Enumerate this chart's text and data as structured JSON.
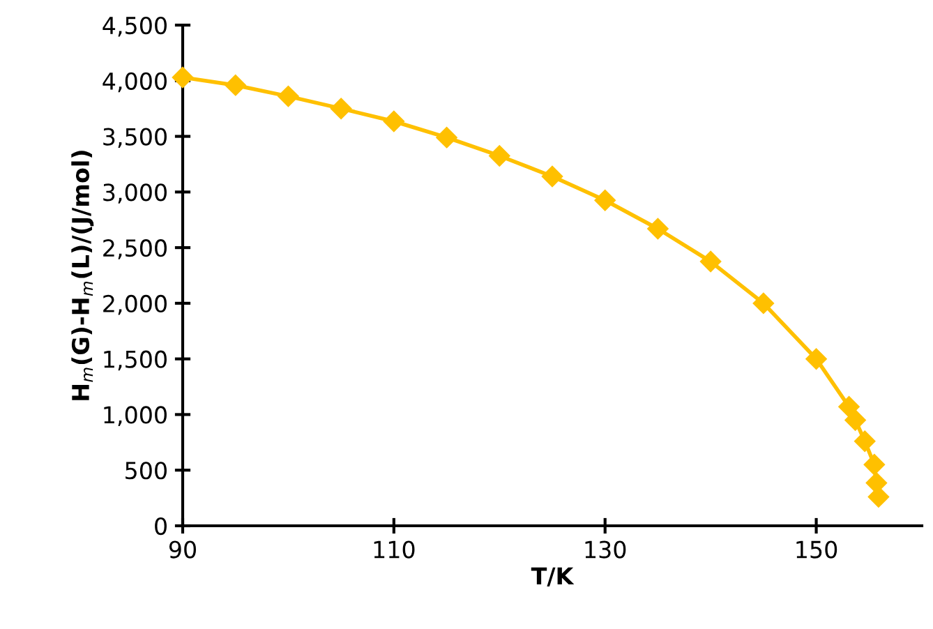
{
  "chart_data": {
    "type": "line",
    "xlabel": "T/K",
    "ylabel": "H$_{m}$(G)-H$_{m}$(L)/(J/mol)",
    "x": [
      90,
      95,
      100,
      105,
      110,
      115,
      120,
      125,
      130,
      135,
      140,
      145,
      150,
      153.1,
      153.7,
      154.6,
      155.5,
      155.7,
      155.9
    ],
    "series": [
      {
        "color": "#ffc000",
        "values": [
          4030,
          3960,
          3860,
          3750,
          3635,
          3490,
          3325,
          3140,
          2925,
          2670,
          2375,
          2000,
          1500,
          1070,
          950,
          760,
          550,
          385,
          260
        ]
      }
    ],
    "xlim": [
      90,
      160
    ],
    "xticks": [
      90,
      110,
      130,
      150
    ],
    "ylim": [
      0,
      4500
    ],
    "yticks": [
      0,
      {
        "value": 500,
        "label": "500"
      },
      {
        "value": 1000,
        "label": "1,000"
      },
      {
        "value": 1500,
        "label": "1,500"
      },
      {
        "value": 2000,
        "label": "2,000"
      },
      {
        "value": 2500,
        "label": "2,500"
      },
      {
        "value": 3000,
        "label": "3,000"
      },
      {
        "value": 3500,
        "label": "3,500"
      },
      {
        "value": 4000,
        "label": "4,000"
      },
      {
        "value": 4500,
        "label": "4,500"
      }
    ],
    "marker": "diamond",
    "line_style": "solid",
    "grid": false,
    "legend": false
  }
}
